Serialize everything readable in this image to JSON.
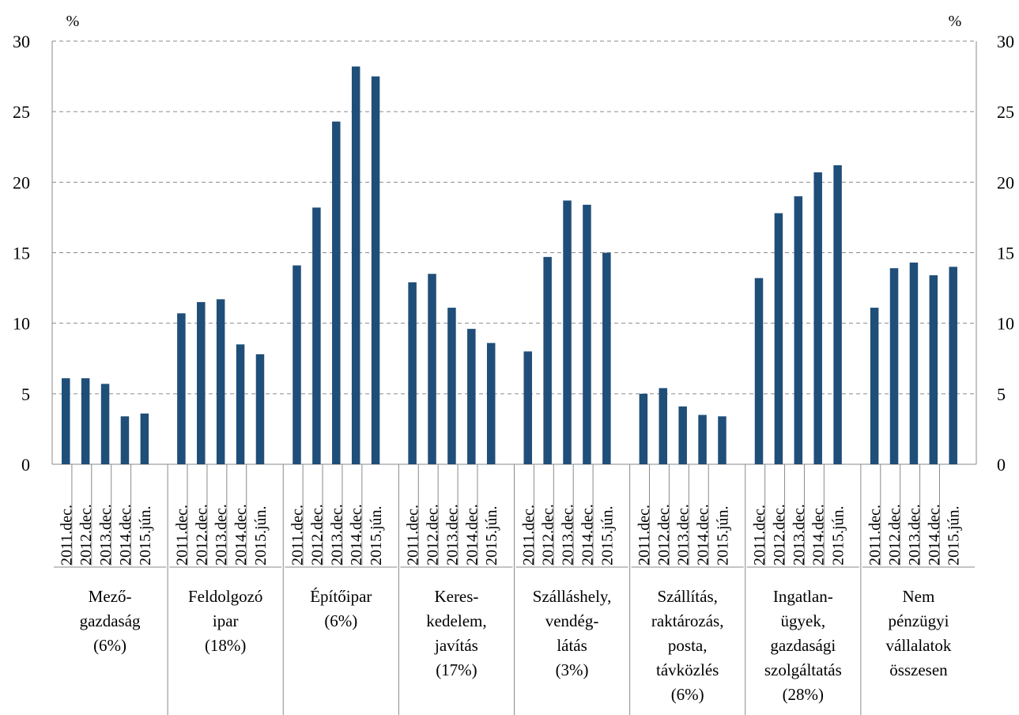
{
  "chart_data": {
    "type": "bar",
    "title": "",
    "y_unit_left": "%",
    "y_unit_right": "%",
    "ylim": [
      0,
      30
    ],
    "yticks": [
      "0",
      "5",
      "10",
      "15",
      "20",
      "25",
      "30"
    ],
    "grid": true,
    "bar_color": "#1f4e79",
    "groups": [
      {
        "label": [
          "Mező-",
          "gazdaság",
          "(6%)"
        ],
        "categories": [
          "2011.dec.",
          "2012.dec.",
          "2013.dec.",
          "2014.dec.",
          "2015.jún."
        ],
        "values": [
          6.1,
          6.1,
          5.7,
          3.4,
          3.6
        ]
      },
      {
        "label": [
          "Feldolgozó",
          "ipar",
          "(18%)"
        ],
        "categories": [
          "2011.dec.",
          "2012.dec.",
          "2013.dec.",
          "2014.dec.",
          "2015.jún."
        ],
        "values": [
          10.7,
          11.5,
          11.7,
          8.5,
          7.8
        ]
      },
      {
        "label": [
          "Építőipar",
          "(6%)"
        ],
        "categories": [
          "2011.dec.",
          "2012.dec.",
          "2013.dec.",
          "2014.dec.",
          "2015.jún."
        ],
        "values": [
          14.1,
          18.2,
          24.3,
          28.2,
          27.5
        ]
      },
      {
        "label": [
          "Keres-",
          "kedelem,",
          "javítás",
          "(17%)"
        ],
        "categories": [
          "2011.dec.",
          "2012.dec.",
          "2013.dec.",
          "2014.dec.",
          "2015.jún."
        ],
        "values": [
          12.9,
          13.5,
          11.1,
          9.6,
          8.6
        ]
      },
      {
        "label": [
          "Szálláshely,",
          "vendég-",
          "látás",
          "(3%)"
        ],
        "categories": [
          "2011.dec.",
          "2012.dec.",
          "2013.dec.",
          "2014.dec.",
          "2015.jún."
        ],
        "values": [
          8.0,
          14.7,
          18.7,
          18.4,
          15.0
        ]
      },
      {
        "label": [
          "Szállítás,",
          "raktározás,",
          "posta,",
          "távközlés",
          "(6%)"
        ],
        "categories": [
          "2011.dec.",
          "2012.dec.",
          "2013.dec.",
          "2014.dec.",
          "2015.jún."
        ],
        "values": [
          5.0,
          5.4,
          4.1,
          3.5,
          3.4
        ]
      },
      {
        "label": [
          "Ingatlan-",
          "ügyek,",
          "gazdasági",
          "szolgáltatás",
          "(28%)"
        ],
        "categories": [
          "2011.dec.",
          "2012.dec.",
          "2013.dec.",
          "2014.dec.",
          "2015.jún."
        ],
        "values": [
          13.2,
          17.8,
          19.0,
          20.7,
          21.2
        ]
      },
      {
        "label": [
          "Nem",
          "pénzügyi",
          "vállalatok",
          "összesen"
        ],
        "categories": [
          "2011.dec.",
          "2012.dec.",
          "2013.dec.",
          "2014.dec.",
          "2015.jún."
        ],
        "values": [
          11.1,
          13.9,
          14.3,
          13.4,
          14.0
        ]
      }
    ]
  }
}
